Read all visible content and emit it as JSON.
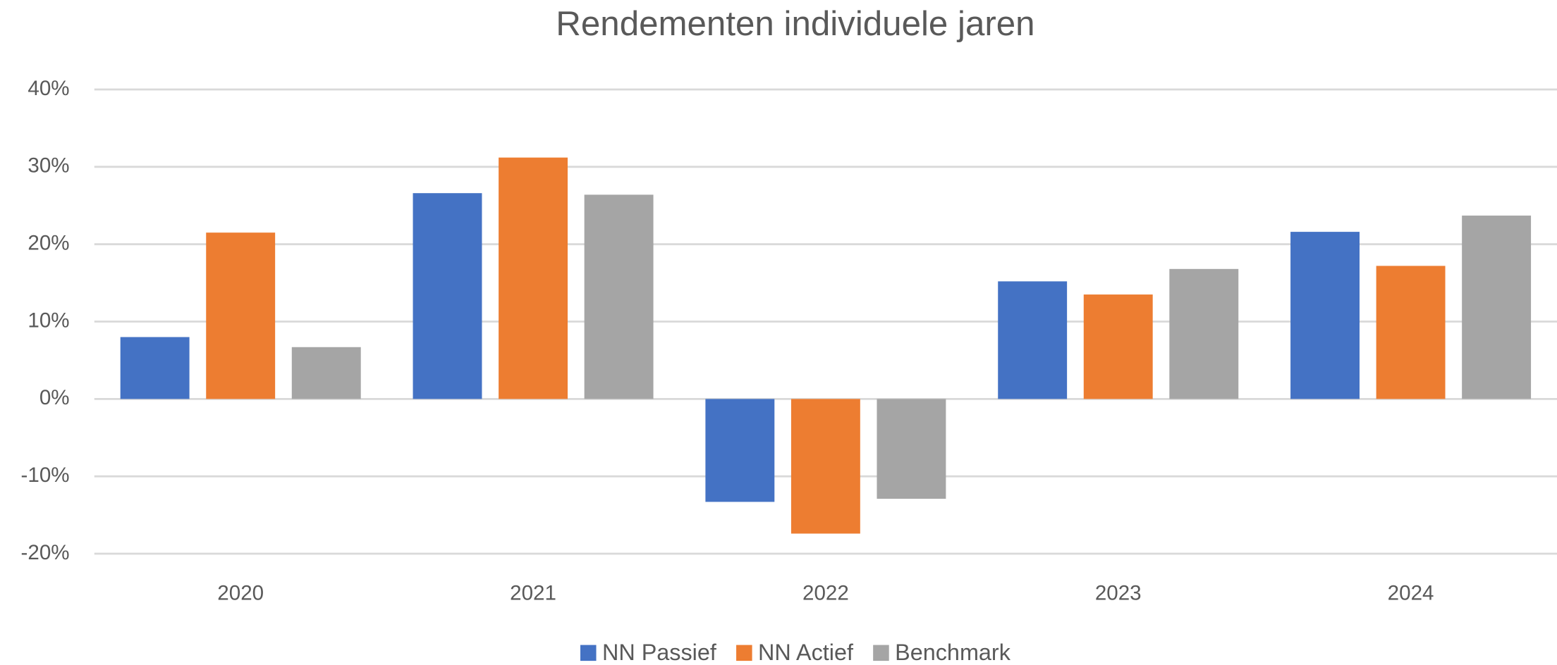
{
  "chart_data": {
    "type": "bar",
    "title": "Rendementen individuele jaren",
    "categories": [
      "2020",
      "2021",
      "2022",
      "2023",
      "2024"
    ],
    "series": [
      {
        "name": "NN Passief",
        "color": "#4472c4",
        "values": [
          8.0,
          26.6,
          -13.3,
          15.2,
          21.6
        ]
      },
      {
        "name": "NN Actief",
        "color": "#ed7d31",
        "values": [
          21.5,
          31.2,
          -17.4,
          13.5,
          17.2
        ]
      },
      {
        "name": "Benchmark",
        "color": "#a5a5a5",
        "values": [
          6.7,
          26.4,
          -12.9,
          16.8,
          23.7
        ]
      }
    ],
    "ylim": [
      -20,
      40
    ],
    "yticks": [
      {
        "value": -20,
        "label": "-20%"
      },
      {
        "value": -10,
        "label": "-10%"
      },
      {
        "value": 0,
        "label": "0%"
      },
      {
        "value": 10,
        "label": "10%"
      },
      {
        "value": 20,
        "label": "20%"
      },
      {
        "value": 30,
        "label": "30%"
      },
      {
        "value": 40,
        "label": "40%"
      }
    ],
    "grid": true,
    "legend": "bottom"
  }
}
